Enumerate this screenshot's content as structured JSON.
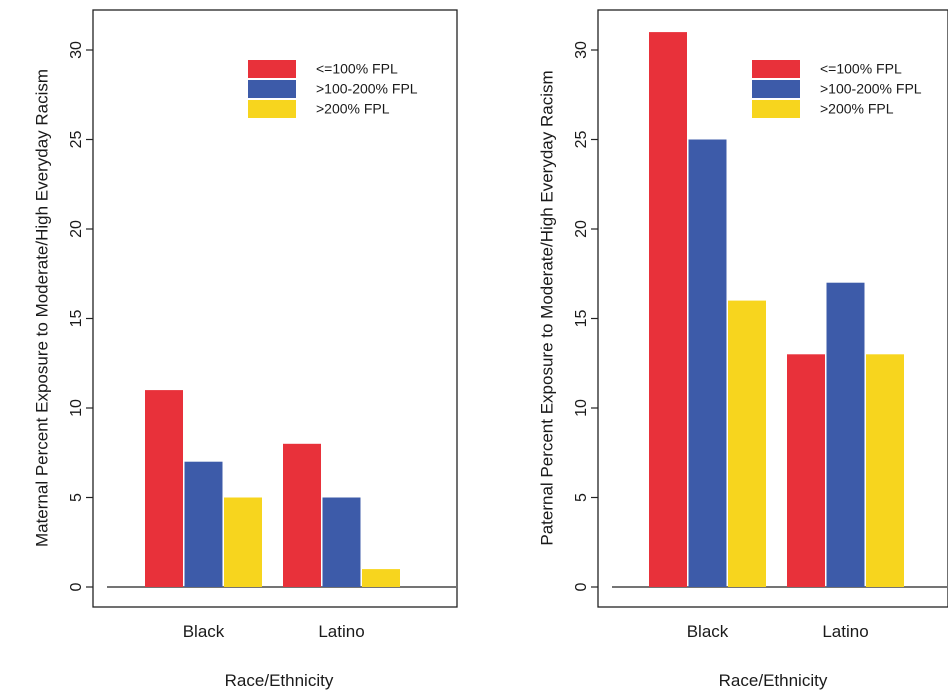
{
  "chart_data": [
    {
      "type": "bar",
      "title": "",
      "xlabel": "Race/Ethnicity",
      "ylabel": "Maternal Percent Exposure to Moderate/High Everyday Racism",
      "categories": [
        "Black",
        "Latino"
      ],
      "series": [
        {
          "name": "<=100% FPL",
          "color": "#e8313a",
          "values": [
            11,
            8
          ]
        },
        {
          "name": ">100-200% FPL",
          "color": "#3d5ba9",
          "values": [
            7,
            5
          ]
        },
        {
          "name": ">200% FPL",
          "color": "#f7d51e",
          "values": [
            5,
            1
          ]
        }
      ],
      "ylim": [
        0,
        32
      ],
      "yticks": [
        0,
        5,
        10,
        15,
        20,
        25,
        30
      ],
      "legend_position": "top-right",
      "grid": false
    },
    {
      "type": "bar",
      "title": "",
      "xlabel": "Race/Ethnicity",
      "ylabel": "Paternal Percent Exposure to Moderate/High Everyday Racism",
      "categories": [
        "Black",
        "Latino"
      ],
      "series": [
        {
          "name": "<=100% FPL",
          "color": "#e8313a",
          "values": [
            31,
            13
          ]
        },
        {
          "name": ">100-200% FPL",
          "color": "#3d5ba9",
          "values": [
            25,
            17
          ]
        },
        {
          "name": ">200% FPL",
          "color": "#f7d51e",
          "values": [
            16,
            13
          ]
        }
      ],
      "ylim": [
        0,
        32
      ],
      "yticks": [
        0,
        5,
        10,
        15,
        20,
        25,
        30
      ],
      "legend_position": "top-right",
      "grid": false
    }
  ]
}
